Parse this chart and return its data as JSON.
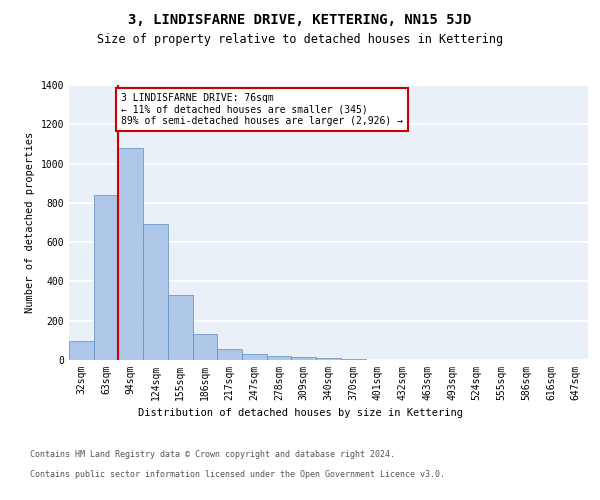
{
  "title": "3, LINDISFARNE DRIVE, KETTERING, NN15 5JD",
  "subtitle": "Size of property relative to detached houses in Kettering",
  "xlabel": "Distribution of detached houses by size in Kettering",
  "ylabel": "Number of detached properties",
  "categories": [
    "32sqm",
    "63sqm",
    "94sqm",
    "124sqm",
    "155sqm",
    "186sqm",
    "217sqm",
    "247sqm",
    "278sqm",
    "309sqm",
    "340sqm",
    "370sqm",
    "401sqm",
    "432sqm",
    "463sqm",
    "493sqm",
    "524sqm",
    "555sqm",
    "586sqm",
    "616sqm",
    "647sqm"
  ],
  "values": [
    95,
    840,
    1080,
    690,
    330,
    130,
    55,
    30,
    20,
    15,
    10,
    5,
    2,
    0,
    0,
    0,
    0,
    0,
    0,
    0,
    0
  ],
  "bar_color": "#aec6e8",
  "bar_edgecolor": "#5a8fc2",
  "background_color": "#eaf0f8",
  "grid_color": "#ffffff",
  "property_line_x": 1.5,
  "property_line_color": "#cc0000",
  "annotation_text": "3 LINDISFARNE DRIVE: 76sqm\n← 11% of detached houses are smaller (345)\n89% of semi-detached houses are larger (2,926) →",
  "annotation_box_edgecolor": "#cc0000",
  "annotation_box_facecolor": "#ffffff",
  "ylim": [
    0,
    1400
  ],
  "yticks": [
    0,
    200,
    400,
    600,
    800,
    1000,
    1200,
    1400
  ],
  "footer_line1": "Contains HM Land Registry data © Crown copyright and database right 2024.",
  "footer_line2": "Contains public sector information licensed under the Open Government Licence v3.0.",
  "title_fontsize": 10,
  "subtitle_fontsize": 8.5,
  "axis_label_fontsize": 7.5,
  "tick_fontsize": 7,
  "annotation_fontsize": 7,
  "footer_fontsize": 6
}
